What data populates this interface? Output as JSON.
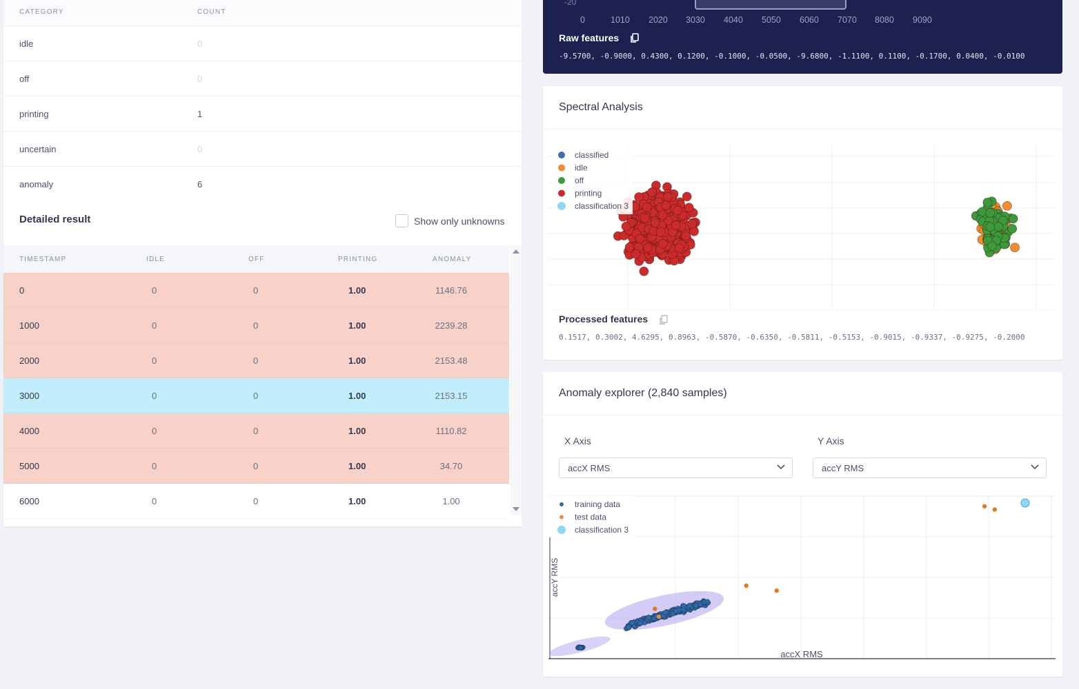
{
  "summary": {
    "headers": {
      "category": "CATEGORY",
      "count": "COUNT"
    },
    "rows": [
      {
        "category": "idle",
        "count": "0"
      },
      {
        "category": "off",
        "count": "0"
      },
      {
        "category": "printing",
        "count": "1"
      },
      {
        "category": "uncertain",
        "count": "0"
      },
      {
        "category": "anomaly",
        "count": "6"
      }
    ]
  },
  "detailed": {
    "title": "Detailed result",
    "show_unknowns_label": "Show only unknowns",
    "headers": {
      "timestamp": "TIMESTAMP",
      "idle": "IDLE",
      "off": "OFF",
      "printing": "PRINTING",
      "anomaly": "ANOMALY"
    },
    "rows": [
      {
        "timestamp": "0",
        "idle": "0",
        "off": "0",
        "printing": "1.00",
        "anomaly": "1146.76",
        "state": "anomaly"
      },
      {
        "timestamp": "1000",
        "idle": "0",
        "off": "0",
        "printing": "1.00",
        "anomaly": "2239.28",
        "state": "anomaly"
      },
      {
        "timestamp": "2000",
        "idle": "0",
        "off": "0",
        "printing": "1.00",
        "anomaly": "2153.48",
        "state": "anomaly"
      },
      {
        "timestamp": "3000",
        "idle": "0",
        "off": "0",
        "printing": "1.00",
        "anomaly": "2153.15",
        "state": "selected"
      },
      {
        "timestamp": "4000",
        "idle": "0",
        "off": "0",
        "printing": "1.00",
        "anomaly": "1110.82",
        "state": "anomaly"
      },
      {
        "timestamp": "5000",
        "idle": "0",
        "off": "0",
        "printing": "1.00",
        "anomaly": "34.70",
        "state": "anomaly"
      },
      {
        "timestamp": "6000",
        "idle": "0",
        "off": "0",
        "printing": "1.00",
        "anomaly": "1.00",
        "state": "plain"
      }
    ]
  },
  "raw_panel": {
    "y_tick_partial": "-20",
    "x_ticks": [
      "0",
      "1010",
      "2020",
      "3030",
      "4040",
      "5050",
      "6060",
      "7070",
      "8080",
      "9090"
    ],
    "features_label": "Raw features",
    "features_values": "-9.5700, -0.9000, 0.4300, 0.1200, -0.1000, -0.0500, -9.6800, -1.1100, 0.1100, -0.1700, 0.0400, -0.0100"
  },
  "spectral": {
    "title": "Spectral Analysis",
    "features_label": "Processed features",
    "features_values": "0.1517, 0.3002, 4.6295, 0.8963, -0.5870, -0.6350, -0.5811, -0.5153, -0.9015, -0.9337, -0.9275, -0.2000"
  },
  "anomaly_explorer": {
    "title": "Anomaly explorer (2,840 samples)",
    "x_axis_label": "X Axis",
    "y_axis_label": "Y Axis",
    "x_axis_value": "accX RMS",
    "y_axis_value": "accY RMS"
  },
  "chart_data": [
    {
      "type": "scatter",
      "title": "Spectral Analysis",
      "legend": [
        "classified",
        "idle",
        "off",
        "printing",
        "classification 3"
      ],
      "legend_colors": [
        "#3a6fb0",
        "#f28e2b",
        "#3c9a3c",
        "#cc2b2b",
        "#8fd8f5"
      ],
      "legend_placement": "top-left",
      "clusters": [
        {
          "name": "printing",
          "center": [
            0.22,
            0.5
          ],
          "n": 650
        },
        {
          "name": "idle",
          "center": [
            0.88,
            0.5
          ],
          "n": 60
        },
        {
          "name": "off",
          "center": [
            0.88,
            0.5
          ],
          "n": 90
        }
      ],
      "grid": true
    },
    {
      "type": "scatter",
      "title": "Anomaly explorer (2,840 samples)",
      "xlabel": "accX RMS",
      "ylabel": "accY RMS",
      "legend": [
        "training data",
        "test data",
        "classification 3"
      ],
      "legend_colors": [
        "#2f6aa8",
        "#f28e2b",
        "#8fd8f5"
      ],
      "legend_placement": "top-left",
      "series": [
        {
          "name": "test data",
          "points": [
            [
              0.86,
              0.93
            ],
            [
              0.88,
              0.91
            ],
            [
              0.39,
              0.45
            ],
            [
              0.45,
              0.42
            ],
            [
              0.21,
              0.31
            ]
          ]
        },
        {
          "name": "classification 3",
          "points": [
            [
              0.94,
              0.95
            ]
          ]
        }
      ],
      "grid": true
    }
  ]
}
